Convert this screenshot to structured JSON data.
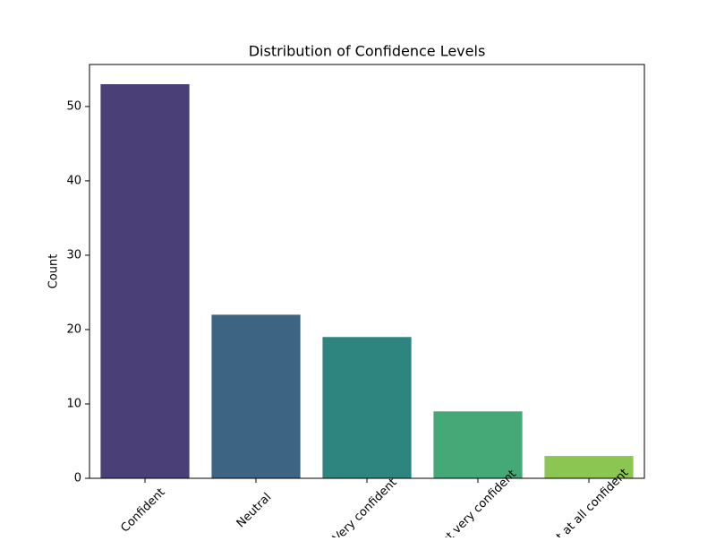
{
  "chart_data": {
    "type": "bar",
    "title": "Distribution of Confidence Levels",
    "y_label": "Count",
    "categories": [
      "Confident",
      "Neutral",
      "Very confident",
      "Not very confident",
      "Not at all confident"
    ],
    "values": [
      53,
      22,
      19,
      9,
      3
    ],
    "colors": [
      "#4b3f78",
      "#3d6583",
      "#2e8580",
      "#45a877",
      "#8bc653"
    ],
    "ylim": [
      0,
      55.65
    ],
    "yticks": [
      0,
      10,
      20,
      30,
      40,
      50
    ],
    "grid": false
  }
}
